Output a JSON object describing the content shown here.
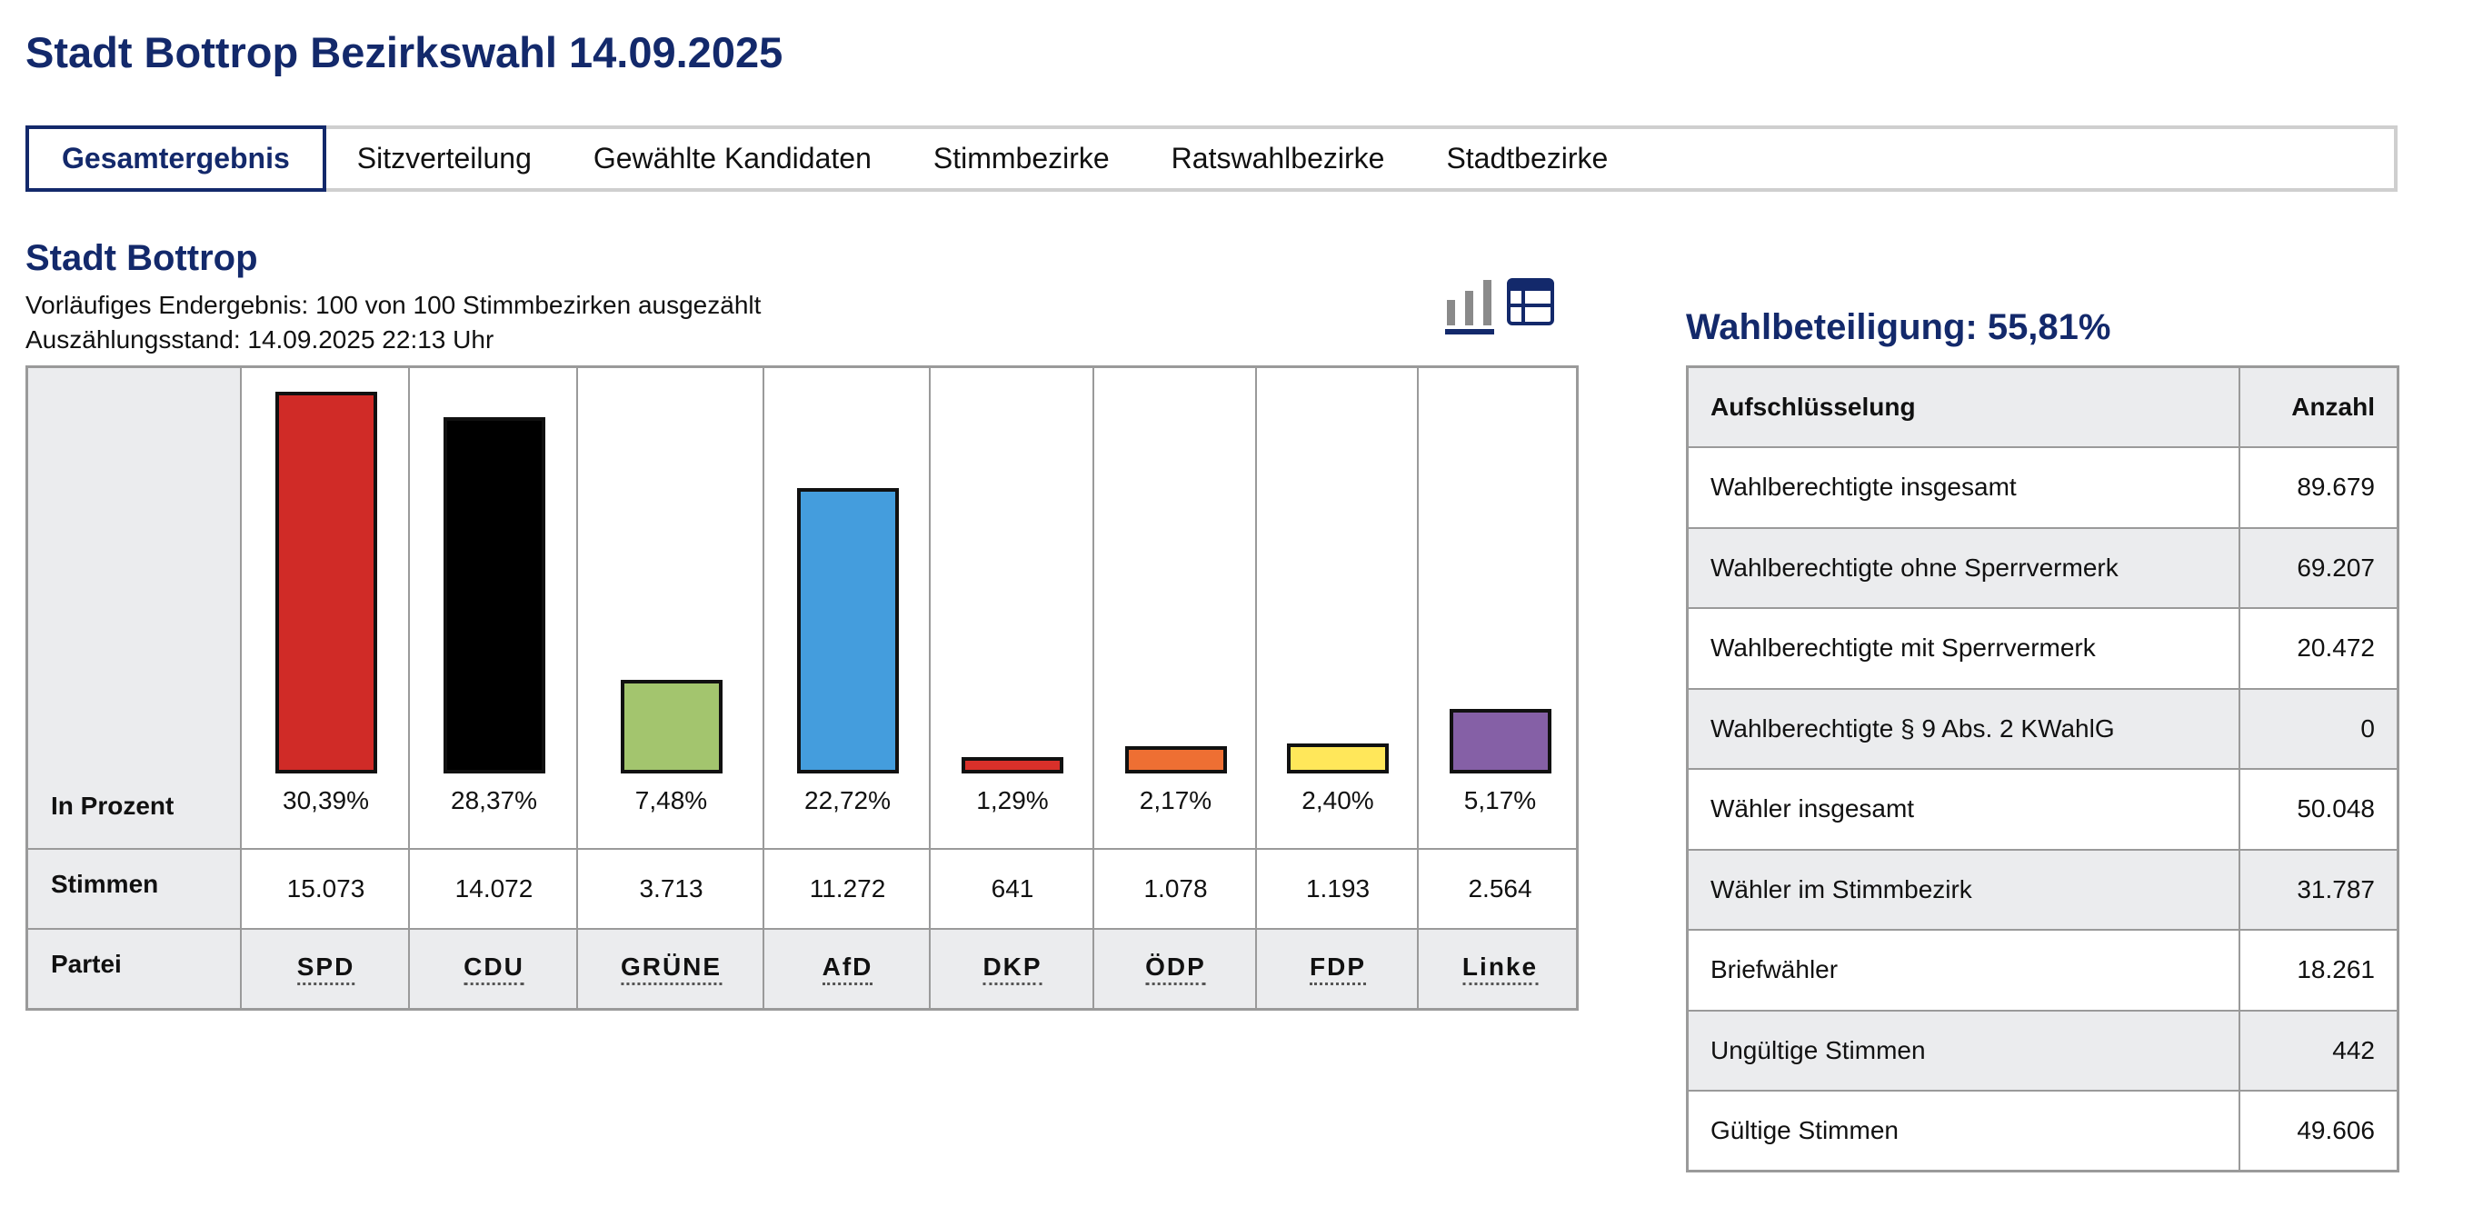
{
  "page_title": "Stadt Bottrop Bezirkswahl 14.09.2025",
  "tabs": [
    {
      "label": "Gesamtergebnis",
      "active": true
    },
    {
      "label": "Sitzverteilung",
      "active": false
    },
    {
      "label": "Gewählte Kandidaten",
      "active": false
    },
    {
      "label": "Stimmbezirke",
      "active": false
    },
    {
      "label": "Ratswahlbezirke",
      "active": false
    },
    {
      "label": "Stadtbezirke",
      "active": false
    }
  ],
  "section": {
    "title": "Stadt Bottrop",
    "status_1": "Vorläufiges Endergebnis: 100 von 100 Stimmbezirken ausgezählt",
    "status_2": "Auszählungsstand: 14.09.2025 22:13 Uhr"
  },
  "view_icons": {
    "chart": "bar-chart-icon",
    "table": "table-icon"
  },
  "results": {
    "row_labels": {
      "percent": "In Prozent",
      "votes": "Stimmen",
      "party": "Partei"
    }
  },
  "chart_data": {
    "type": "bar",
    "categories": [
      "SPD",
      "CDU",
      "GRÜNE",
      "AfD",
      "DKP",
      "ÖDP",
      "FDP",
      "Linke"
    ],
    "values": [
      30.39,
      28.37,
      7.48,
      22.72,
      1.29,
      2.17,
      2.4,
      5.17
    ],
    "value_labels": [
      "30,39%",
      "28,37%",
      "7,48%",
      "22,72%",
      "1,29%",
      "2,17%",
      "2,40%",
      "5,17%"
    ],
    "votes": [
      "15.073",
      "14.072",
      "3.713",
      "11.272",
      "641",
      "1.078",
      "1.193",
      "2.564"
    ],
    "colors": [
      "#d02b27",
      "#000000",
      "#a3c56e",
      "#449ddd",
      "#d9302a",
      "#ee6f33",
      "#ffe75a",
      "#8560a6"
    ],
    "ylim": [
      0,
      30.39
    ]
  },
  "turnout": {
    "title": "Wahlbeteiligung: 55,81%",
    "headers": [
      "Aufschlüsselung",
      "Anzahl"
    ],
    "rows": [
      {
        "label": "Wahlberechtigte insgesamt",
        "value": "89.679"
      },
      {
        "label": "Wahlberechtigte ohne Sperrvermerk",
        "value": "69.207"
      },
      {
        "label": "Wahlberechtigte mit Sperrvermerk",
        "value": "20.472"
      },
      {
        "label": "Wahlberechtigte § 9 Abs. 2 KWahlG",
        "value": "0"
      },
      {
        "label": "Wähler insgesamt",
        "value": "50.048"
      },
      {
        "label": "Wähler im Stimmbezirk",
        "value": "31.787"
      },
      {
        "label": "Briefwähler",
        "value": "18.261"
      },
      {
        "label": "Ungültige Stimmen",
        "value": "442"
      },
      {
        "label": "Gültige Stimmen",
        "value": "49.606"
      }
    ]
  }
}
